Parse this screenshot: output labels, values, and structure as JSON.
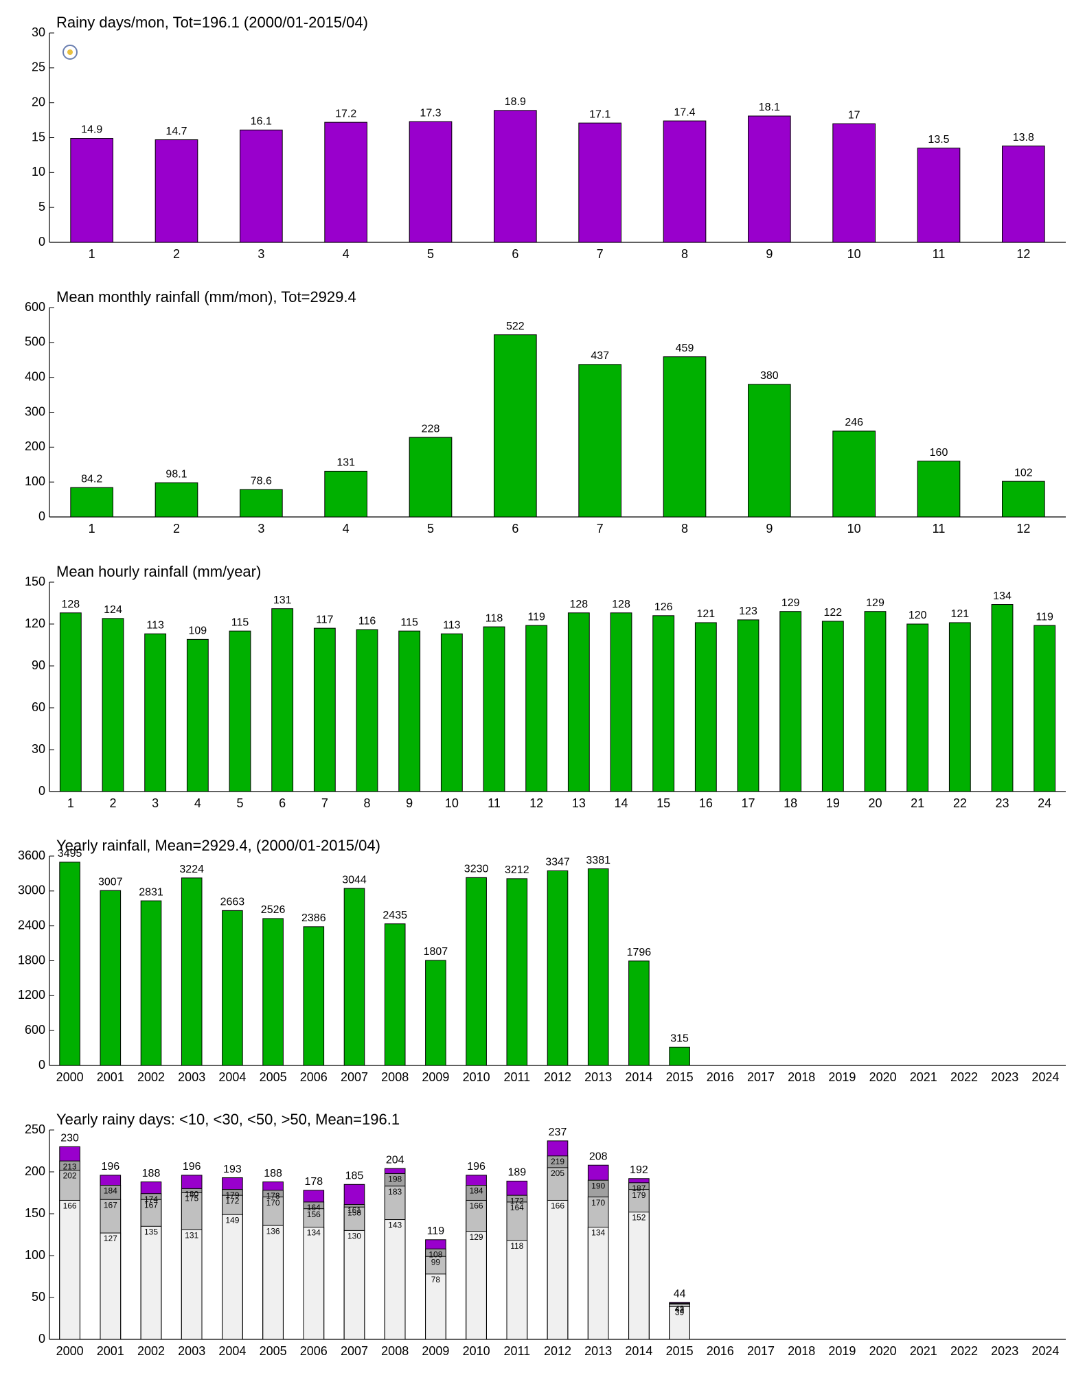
{
  "chart_data": [
    {
      "type": "bar",
      "title": "Rainy days/mon, Tot=196.1 (2000/01-2015/04)",
      "categories": [
        "1",
        "2",
        "3",
        "4",
        "5",
        "6",
        "7",
        "8",
        "9",
        "10",
        "11",
        "12"
      ],
      "values": [
        14.9,
        14.7,
        16.1,
        17.2,
        17.3,
        18.9,
        17.1,
        17.4,
        18.1,
        17,
        13.5,
        13.8
      ],
      "color": "#9900cc",
      "ylim": [
        0,
        30
      ],
      "yticks": [
        0,
        5,
        10,
        15,
        20,
        25,
        30
      ]
    },
    {
      "type": "bar",
      "title": "Mean monthly rainfall (mm/mon), Tot=2929.4",
      "categories": [
        "1",
        "2",
        "3",
        "4",
        "5",
        "6",
        "7",
        "8",
        "9",
        "10",
        "11",
        "12"
      ],
      "values": [
        84.2,
        98.1,
        78.6,
        131,
        228,
        522,
        437,
        459,
        380,
        246,
        160,
        102
      ],
      "color": "#00b000",
      "ylim": [
        0,
        600
      ],
      "yticks": [
        0,
        100,
        200,
        300,
        400,
        500,
        600
      ]
    },
    {
      "type": "bar",
      "title": "Mean hourly rainfall (mm/year)",
      "categories": [
        "1",
        "2",
        "3",
        "4",
        "5",
        "6",
        "7",
        "8",
        "9",
        "10",
        "11",
        "12",
        "13",
        "14",
        "15",
        "16",
        "17",
        "18",
        "19",
        "20",
        "21",
        "22",
        "23",
        "24"
      ],
      "values": [
        128,
        124,
        113,
        109,
        115,
        131,
        117,
        116,
        115,
        113,
        118,
        119,
        128,
        128,
        126,
        121,
        123,
        129,
        122,
        129,
        120,
        121,
        134,
        119
      ],
      "color": "#00b000",
      "ylim": [
        0,
        150
      ],
      "yticks": [
        0,
        30,
        60,
        90,
        120,
        150
      ]
    },
    {
      "type": "bar",
      "title": "Yearly rainfall, Mean=2929.4, (2000/01-2015/04)",
      "categories": [
        "2000",
        "2001",
        "2002",
        "2003",
        "2004",
        "2005",
        "2006",
        "2007",
        "2008",
        "2009",
        "2010",
        "2011",
        "2012",
        "2013",
        "2014",
        "2015",
        "2016",
        "2017",
        "2018",
        "2019",
        "2020",
        "2021",
        "2022",
        "2023",
        "2024"
      ],
      "values": [
        3495,
        3007,
        2831,
        3224,
        2663,
        2526,
        2386,
        3044,
        2435,
        1807,
        3230,
        3212,
        3347,
        3381,
        1796,
        315,
        null,
        null,
        null,
        null,
        null,
        null,
        null,
        null,
        null
      ],
      "color": "#00b000",
      "ylim": [
        0,
        3600
      ],
      "yticks": [
        0,
        600,
        1200,
        1800,
        2400,
        3000,
        3600
      ]
    },
    {
      "type": "bar",
      "title": "Yearly rainy days: <10, <30, <50, >50, Mean=196.1",
      "categories": [
        "2000",
        "2001",
        "2002",
        "2003",
        "2004",
        "2005",
        "2006",
        "2007",
        "2008",
        "2009",
        "2010",
        "2011",
        "2012",
        "2013",
        "2014",
        "2015",
        "2016",
        "2017",
        "2018",
        "2019",
        "2020",
        "2021",
        "2022",
        "2023",
        "2024"
      ],
      "series": [
        {
          "color": "#f0f0f0",
          "values": [
            166,
            127,
            135,
            131,
            149,
            136,
            134,
            130,
            143,
            78,
            129,
            118,
            166,
            134,
            152,
            39,
            null,
            null,
            null,
            null,
            null,
            null,
            null,
            null,
            null
          ]
        },
        {
          "color": "#c0c0c0",
          "values": [
            202,
            167,
            167,
            175,
            172,
            170,
            156,
            158,
            183,
            99,
            166,
            164,
            205,
            170,
            179,
            42,
            null,
            null,
            null,
            null,
            null,
            null,
            null,
            null,
            null
          ]
        },
        {
          "color": "#a0a0a0",
          "values": [
            213,
            184,
            174,
            180,
            179,
            178,
            164,
            161,
            198,
            108,
            184,
            172,
            219,
            190,
            187,
            43,
            null,
            null,
            null,
            null,
            null,
            null,
            null,
            null,
            null
          ]
        },
        {
          "color": "#9900cc",
          "values": [
            230,
            196,
            188,
            196,
            193,
            188,
            178,
            185,
            204,
            119,
            196,
            189,
            237,
            208,
            192,
            44,
            null,
            null,
            null,
            null,
            null,
            null,
            null,
            null,
            null
          ]
        }
      ],
      "ylim": [
        0,
        250
      ],
      "yticks": [
        0,
        50,
        100,
        150,
        200,
        250
      ]
    }
  ]
}
